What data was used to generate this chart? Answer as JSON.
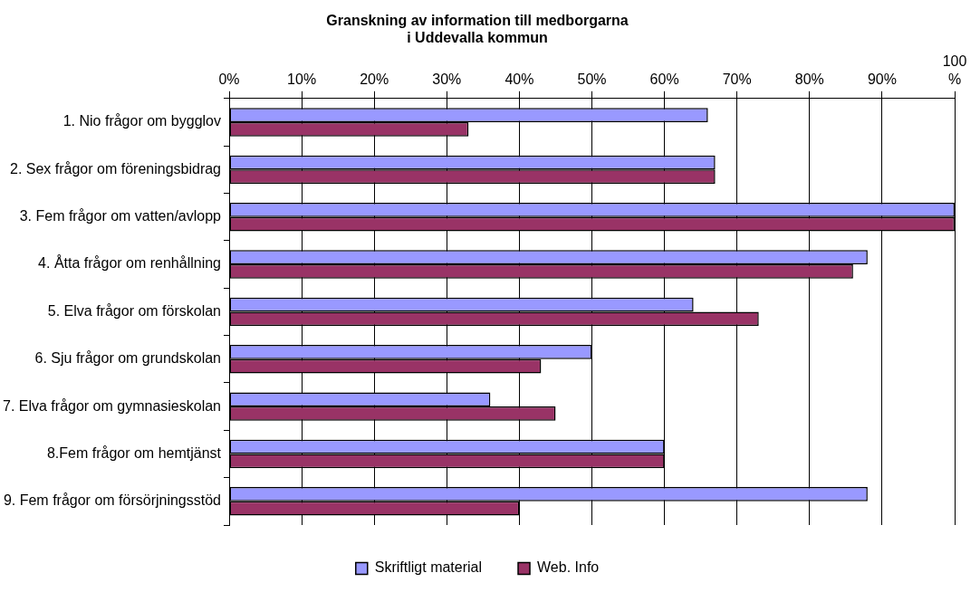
{
  "chart_data": {
    "type": "bar",
    "orientation": "horizontal",
    "title": "Granskning av information till medborgarna\ni Uddevalla kommun",
    "categories": [
      "1. Nio frågor om bygglov",
      "2. Sex frågor om föreningsbidrag",
      "3. Fem frågor om vatten/avlopp",
      "4. Åtta frågor om renhållning",
      "5. Elva frågor om förskolan",
      "6. Sju frågor om grundskolan",
      "7. Elva frågor om gymnasieskolan",
      "8.Fem frågor om hemtjänst",
      "9. Fem frågor om försörjningsstöd"
    ],
    "series": [
      {
        "name": "Skriftligt material",
        "color": "#9999ff",
        "values": [
          66,
          67,
          100,
          88,
          64,
          50,
          36,
          60,
          88
        ]
      },
      {
        "name": "Web. Info",
        "color": "#993366",
        "values": [
          33,
          67,
          100,
          86,
          73,
          43,
          45,
          60,
          40
        ]
      }
    ],
    "xlim": [
      0,
      100
    ],
    "xticks": [
      {
        "value": 0,
        "label": "0%"
      },
      {
        "value": 10,
        "label": "10%"
      },
      {
        "value": 20,
        "label": "20%"
      },
      {
        "value": 30,
        "label": "30%"
      },
      {
        "value": 40,
        "label": "40%"
      },
      {
        "value": 50,
        "label": "50%"
      },
      {
        "value": 60,
        "label": "60%"
      },
      {
        "value": 70,
        "label": "70%"
      },
      {
        "value": 80,
        "label": "80%"
      },
      {
        "value": 90,
        "label": "90%"
      },
      {
        "value": 100,
        "label": "100 %"
      }
    ],
    "grid": "x",
    "legend": "bottom"
  }
}
